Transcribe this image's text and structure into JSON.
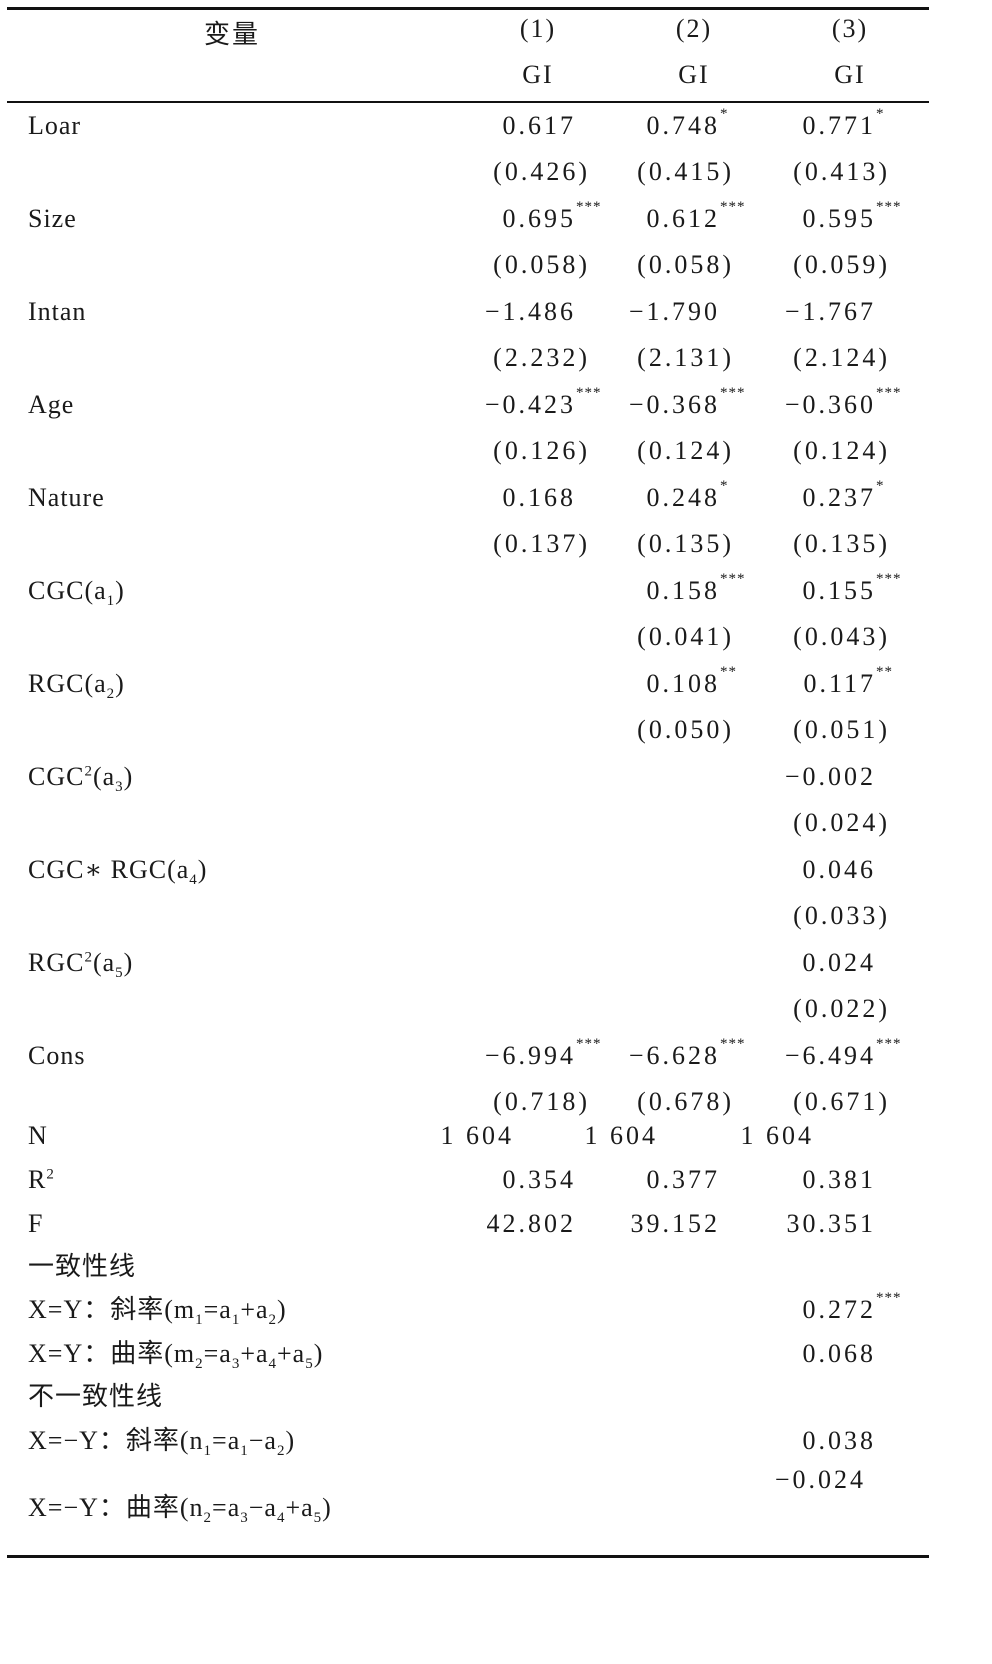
{
  "header": {
    "variable_label": "变量",
    "columns": [
      {
        "number": "(1)",
        "dep": "GI"
      },
      {
        "number": "(2)",
        "dep": "GI"
      },
      {
        "number": "(3)",
        "dep": "GI"
      }
    ]
  },
  "rows": [
    {
      "label": [
        [
          "Loar",
          ""
        ]
      ],
      "coef": [
        [
          "0.617",
          ""
        ],
        [
          "0.748",
          "*"
        ],
        [
          "0.771",
          "*"
        ]
      ],
      "se": [
        "(0.426)",
        "(0.415)",
        "(0.413)"
      ]
    },
    {
      "label": [
        [
          "Size",
          ""
        ]
      ],
      "coef": [
        [
          "0.695",
          "***"
        ],
        [
          "0.612",
          "***"
        ],
        [
          "0.595",
          "***"
        ]
      ],
      "se": [
        "(0.058)",
        "(0.058)",
        "(0.059)"
      ]
    },
    {
      "label": [
        [
          "Intan",
          ""
        ]
      ],
      "coef": [
        [
          "−1.486",
          ""
        ],
        [
          "−1.790",
          ""
        ],
        [
          "−1.767",
          ""
        ]
      ],
      "se": [
        "(2.232)",
        "(2.131)",
        "(2.124)"
      ]
    },
    {
      "label": [
        [
          "Age",
          ""
        ]
      ],
      "coef": [
        [
          "−0.423",
          "***"
        ],
        [
          "−0.368",
          "***"
        ],
        [
          "−0.360",
          "***"
        ]
      ],
      "se": [
        "(0.126)",
        "(0.124)",
        "(0.124)"
      ]
    },
    {
      "label": [
        [
          "Nature",
          ""
        ]
      ],
      "coef": [
        [
          "0.168",
          ""
        ],
        [
          "0.248",
          "*"
        ],
        [
          "0.237",
          "*"
        ]
      ],
      "se": [
        "(0.137)",
        "(0.135)",
        "(0.135)"
      ]
    },
    {
      "label": [
        [
          "CGC(a",
          ""
        ],
        [
          "1",
          "sub"
        ],
        [
          ")",
          ""
        ]
      ],
      "coef": [
        null,
        [
          "0.158",
          "***"
        ],
        [
          "0.155",
          "***"
        ]
      ],
      "se": [
        null,
        "(0.041)",
        "(0.043)"
      ]
    },
    {
      "label": [
        [
          "RGC(a",
          ""
        ],
        [
          "2",
          "sub"
        ],
        [
          ")",
          ""
        ]
      ],
      "coef": [
        null,
        [
          "0.108",
          "**"
        ],
        [
          "0.117",
          "**"
        ]
      ],
      "se": [
        null,
        "(0.050)",
        "(0.051)"
      ]
    },
    {
      "label": [
        [
          "CGC",
          ""
        ],
        [
          "2",
          "sup"
        ],
        [
          "(a",
          ""
        ],
        [
          "3",
          "sub"
        ],
        [
          ")",
          ""
        ]
      ],
      "coef": [
        null,
        null,
        [
          "−0.002",
          ""
        ]
      ],
      "se": [
        null,
        null,
        "(0.024)"
      ]
    },
    {
      "label": [
        [
          "CGC∗ RGC(a",
          ""
        ],
        [
          "4",
          "sub"
        ],
        [
          ")",
          ""
        ]
      ],
      "coef": [
        null,
        null,
        [
          "0.046",
          ""
        ]
      ],
      "se": [
        null,
        null,
        "(0.033)"
      ]
    },
    {
      "label": [
        [
          "RGC",
          ""
        ],
        [
          "2",
          "sup"
        ],
        [
          "(a",
          ""
        ],
        [
          "5",
          "sub"
        ],
        [
          ")",
          ""
        ]
      ],
      "coef": [
        null,
        null,
        [
          "0.024",
          ""
        ]
      ],
      "se": [
        null,
        null,
        "(0.022)"
      ]
    },
    {
      "label": [
        [
          "Cons",
          ""
        ]
      ],
      "coef": [
        [
          "−6.994",
          "***"
        ],
        [
          "−6.628",
          "***"
        ],
        [
          "−6.494",
          "***"
        ]
      ],
      "se": [
        "(0.718)",
        "(0.678)",
        "(0.671)"
      ]
    }
  ],
  "stats": [
    {
      "label": [
        [
          "N",
          ""
        ]
      ],
      "values": [
        "1 604",
        "1 604",
        "1 604"
      ],
      "shift": true
    },
    {
      "label": [
        [
          "R",
          ""
        ],
        [
          "2",
          "sup"
        ]
      ],
      "values": [
        "0.354",
        "0.377",
        "0.381"
      ]
    },
    {
      "label": [
        [
          "F",
          ""
        ]
      ],
      "values": [
        "42.802",
        "39.152",
        "30.351"
      ]
    }
  ],
  "surface": [
    {
      "label": [
        [
          "一致性线",
          ""
        ]
      ]
    },
    {
      "label": [
        [
          "X=Y：斜率(m",
          ""
        ],
        [
          "1",
          "sub"
        ],
        [
          "=a",
          ""
        ],
        [
          "1",
          "sub"
        ],
        [
          "+a",
          ""
        ],
        [
          "2",
          "sub"
        ],
        [
          ")",
          ""
        ]
      ],
      "value": [
        "0.272",
        "***"
      ]
    },
    {
      "label": [
        [
          "X=Y：曲率(m",
          ""
        ],
        [
          "2",
          "sub"
        ],
        [
          "=a",
          ""
        ],
        [
          "3",
          "sub"
        ],
        [
          "+a",
          ""
        ],
        [
          "4",
          "sub"
        ],
        [
          "+a",
          ""
        ],
        [
          "5",
          "sub"
        ],
        [
          ")",
          ""
        ]
      ],
      "value": [
        "0.068",
        ""
      ]
    },
    {
      "label": [
        [
          "不一致性线",
          ""
        ]
      ]
    },
    {
      "label": [
        [
          "X=−Y：斜率(n",
          ""
        ],
        [
          "1",
          "sub"
        ],
        [
          "=a",
          ""
        ],
        [
          "1",
          "sub"
        ],
        [
          "−a",
          ""
        ],
        [
          "2",
          "sub"
        ],
        [
          ")",
          ""
        ]
      ],
      "value": [
        "0.038",
        ""
      ]
    },
    {
      "label": [
        [
          "X=−Y：曲率(n",
          ""
        ],
        [
          "2",
          "sub"
        ],
        [
          "=a",
          ""
        ],
        [
          "3",
          "sub"
        ],
        [
          "−a",
          ""
        ],
        [
          "4",
          "sub"
        ],
        [
          "+a",
          ""
        ],
        [
          "5",
          "sub"
        ],
        [
          ")",
          ""
        ]
      ],
      "value": [
        "−0.024",
        ""
      ]
    }
  ]
}
